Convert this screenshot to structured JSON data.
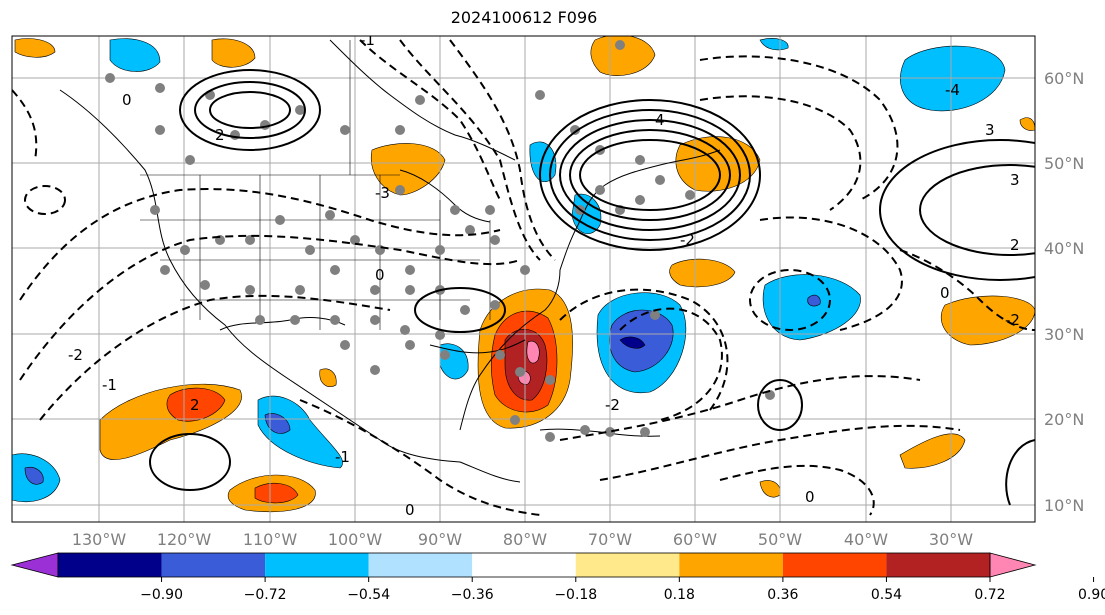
{
  "title": "2024100612 F096",
  "map": {
    "lat_labels": [
      "60°N",
      "50°N",
      "40°N",
      "30°N",
      "20°N",
      "10°N"
    ],
    "lon_labels": [
      "130°W",
      "120°W",
      "110°W",
      "100°W",
      "90°W",
      "80°W",
      "70°W",
      "60°W",
      "50°W",
      "40°W",
      "30°W"
    ],
    "contour_labels": [
      "-1",
      "0",
      "2",
      "-3",
      "-2",
      "4",
      "3",
      "2",
      "0",
      "-2",
      "0",
      "-2",
      "-1",
      "2",
      "0",
      "-4",
      "-2",
      "3",
      "0",
      "-1"
    ]
  },
  "colorbar": {
    "ticks": [
      "−0.90",
      "−0.72",
      "−0.54",
      "−0.36",
      "−0.18",
      "0.18",
      "0.36",
      "0.54",
      "0.72",
      "0.90"
    ],
    "colors": [
      "#9b30d6",
      "#00008b",
      "#3a5cd8",
      "#00bfff",
      "#b0e2ff",
      "#ffffff",
      "#ffe98a",
      "#ffa500",
      "#ff4500",
      "#b22222",
      "#ff85b3"
    ]
  }
}
